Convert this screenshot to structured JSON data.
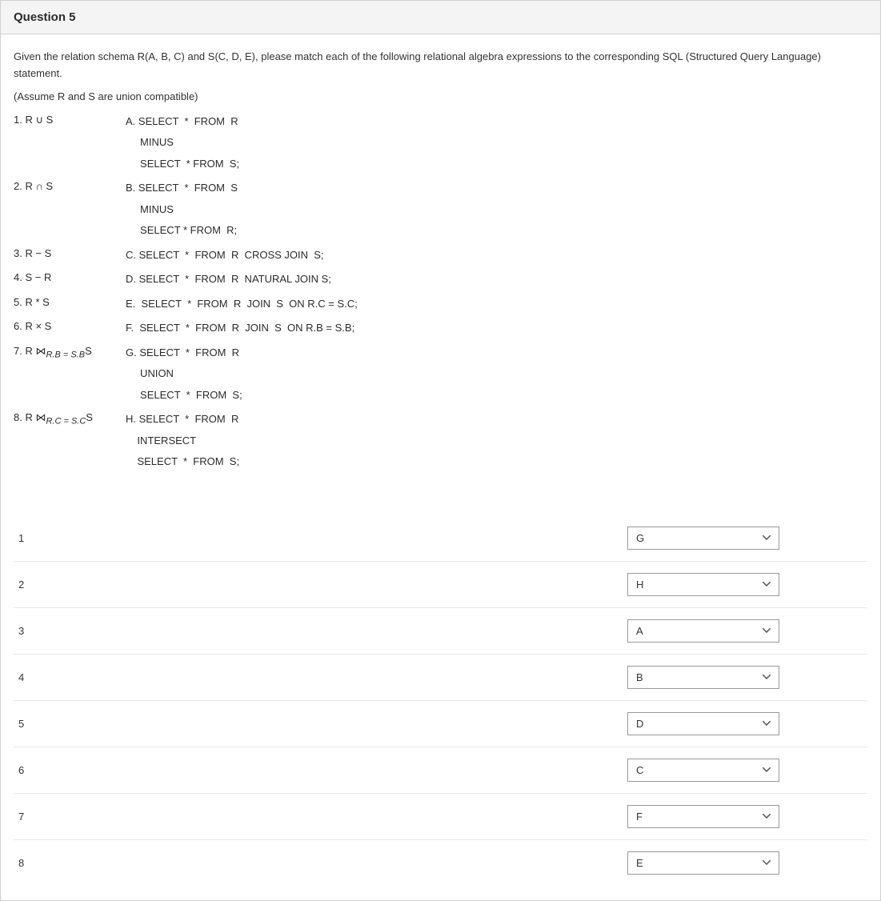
{
  "header": {
    "title": "Question 5"
  },
  "intro": "Given the relation schema R(A, B, C) and S(C, D, E), please match each of  the following relational algebra expressions to the corresponding SQL (Structured Query Language) statement.",
  "assume": "(Assume R and S are union compatible)",
  "expressions": [
    {
      "left": "1. R ∪ S",
      "right": [
        "A. SELECT  *  FROM  R",
        "     MINUS",
        "     SELECT  * FROM  S;"
      ]
    },
    {
      "left": "2. R ∩ S",
      "right": [
        "B. SELECT  *  FROM  S",
        "     MINUS",
        "     SELECT * FROM  R;"
      ]
    },
    {
      "left": "3. R − S",
      "right": [
        "C. SELECT  *  FROM  R  CROSS JOIN  S;"
      ]
    },
    {
      "left": "4. S − R",
      "right": [
        "D. SELECT  *  FROM  R  NATURAL JOIN S;"
      ]
    },
    {
      "left": "5. R * S",
      "right": [
        "E.  SELECT  *  FROM  R  JOIN  S  ON R.C = S.C;"
      ]
    },
    {
      "left": "6. R × S",
      "right": [
        "F.  SELECT  *  FROM  R  JOIN  S  ON R.B = S.B;"
      ]
    },
    {
      "left": "7. R ⋈",
      "sub": "R.B = S.B",
      "leftSuffix": "S",
      "right": [
        "G. SELECT  *  FROM  R",
        "     UNION",
        "     SELECT  *  FROM  S;"
      ]
    },
    {
      "left": "8. R ⋈",
      "sub": "R.C = S.C",
      "leftSuffix": "S",
      "right": [
        "H. SELECT  *  FROM  R",
        "    INTERSECT",
        "    SELECT  *  FROM  S;"
      ]
    }
  ],
  "answers": [
    {
      "num": "1",
      "value": "G"
    },
    {
      "num": "2",
      "value": "H"
    },
    {
      "num": "3",
      "value": "A"
    },
    {
      "num": "4",
      "value": "B"
    },
    {
      "num": "5",
      "value": "D"
    },
    {
      "num": "6",
      "value": "C"
    },
    {
      "num": "7",
      "value": "F"
    },
    {
      "num": "8",
      "value": "E"
    }
  ],
  "options": [
    "A",
    "B",
    "C",
    "D",
    "E",
    "F",
    "G",
    "H"
  ]
}
